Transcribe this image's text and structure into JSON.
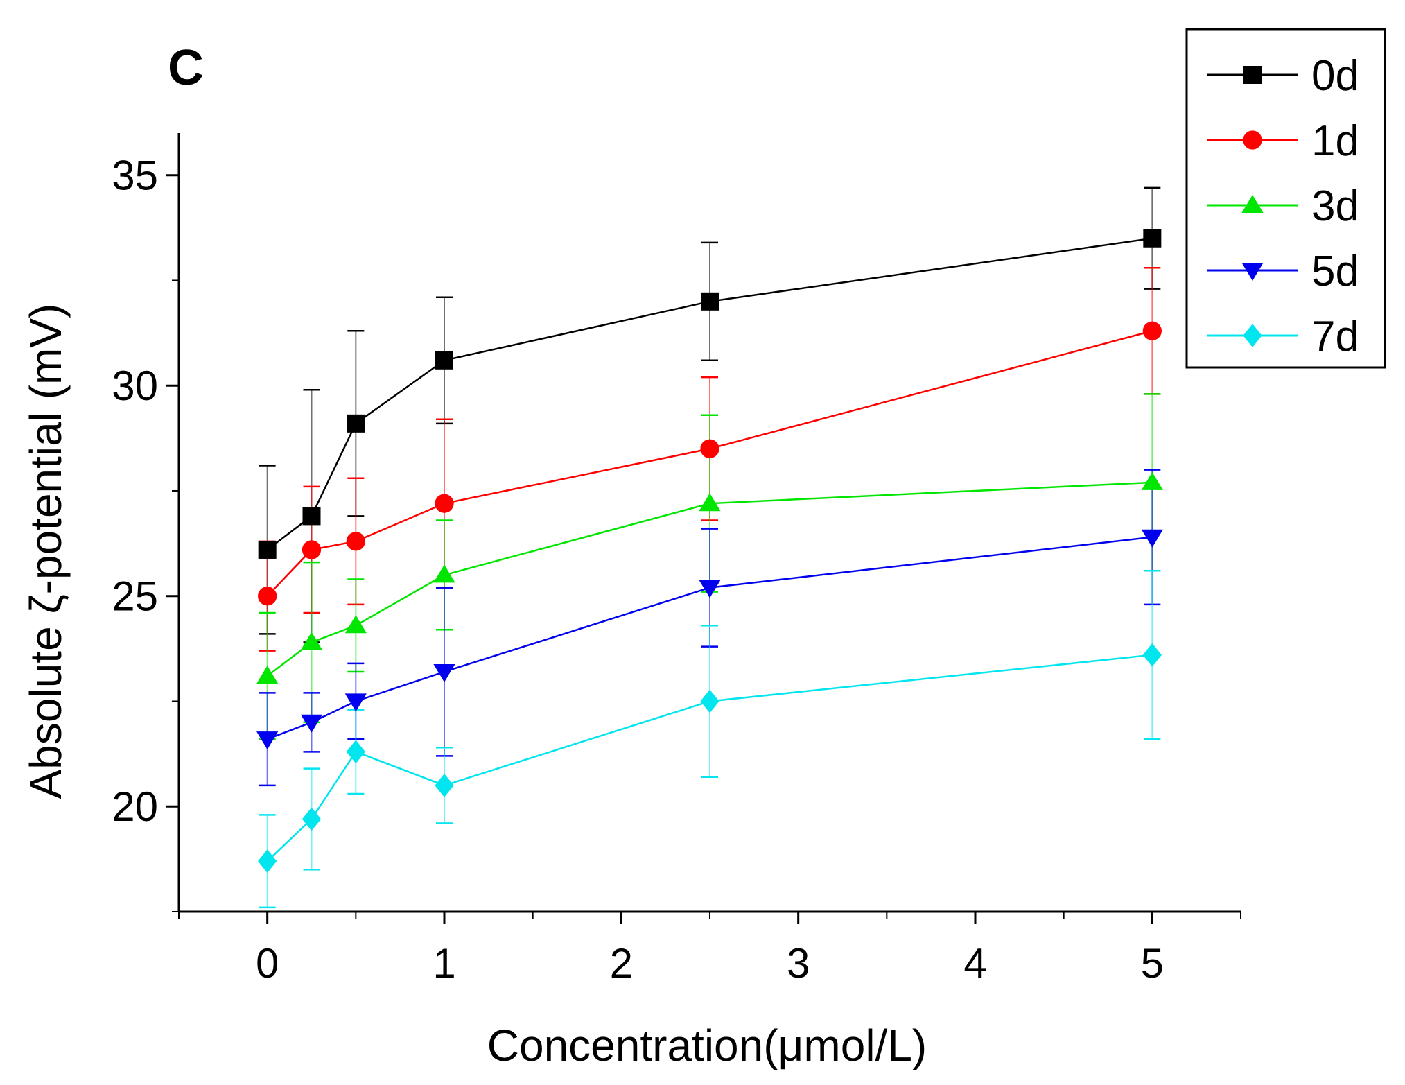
{
  "chart_data": {
    "type": "line",
    "panel_label": "C",
    "title": "",
    "xlabel": "Concentration(μmol/L)",
    "ylabel": "Absolute ζ-potential (mV)",
    "xlim": [
      -0.5,
      5.5
    ],
    "ylim": [
      17.5,
      36
    ],
    "xticks": [
      0,
      1,
      2,
      3,
      4,
      5
    ],
    "xtick_labels": [
      "0",
      "1",
      "2",
      "3",
      "4",
      "5"
    ],
    "yticks": [
      20,
      25,
      30,
      35
    ],
    "ytick_labels": [
      "20",
      "25",
      "30",
      "35"
    ],
    "x": [
      0,
      0.25,
      0.5,
      1,
      2.5,
      5
    ],
    "legend_position": "top-right",
    "series": [
      {
        "name": "0d",
        "color": "#000000",
        "marker": "square",
        "values": [
          26.1,
          26.9,
          29.1,
          30.6,
          32.0,
          33.5
        ],
        "errors": [
          2.0,
          3.0,
          2.2,
          1.5,
          1.4,
          1.2
        ]
      },
      {
        "name": "1d",
        "color": "#ff0000",
        "marker": "circle",
        "values": [
          25.0,
          26.1,
          26.3,
          27.2,
          28.5,
          31.3
        ],
        "errors": [
          1.3,
          1.5,
          1.5,
          2.0,
          1.7,
          1.5
        ]
      },
      {
        "name": "3d",
        "color": "#00e600",
        "marker": "triangle-up",
        "values": [
          23.1,
          23.9,
          24.3,
          25.5,
          27.2,
          27.7
        ],
        "errors": [
          1.5,
          1.9,
          1.1,
          1.3,
          2.1,
          2.1
        ]
      },
      {
        "name": "5d",
        "color": "#0000ee",
        "marker": "triangle-down",
        "values": [
          21.6,
          22.0,
          22.5,
          23.2,
          25.2,
          26.4
        ],
        "errors": [
          1.1,
          0.7,
          0.9,
          2.0,
          1.4,
          1.6
        ]
      },
      {
        "name": "7d",
        "color": "#00e5ee",
        "marker": "diamond",
        "values": [
          18.7,
          19.7,
          21.3,
          20.5,
          22.5,
          23.6
        ],
        "errors": [
          1.1,
          1.2,
          1.0,
          0.9,
          1.8,
          2.0
        ]
      }
    ]
  }
}
